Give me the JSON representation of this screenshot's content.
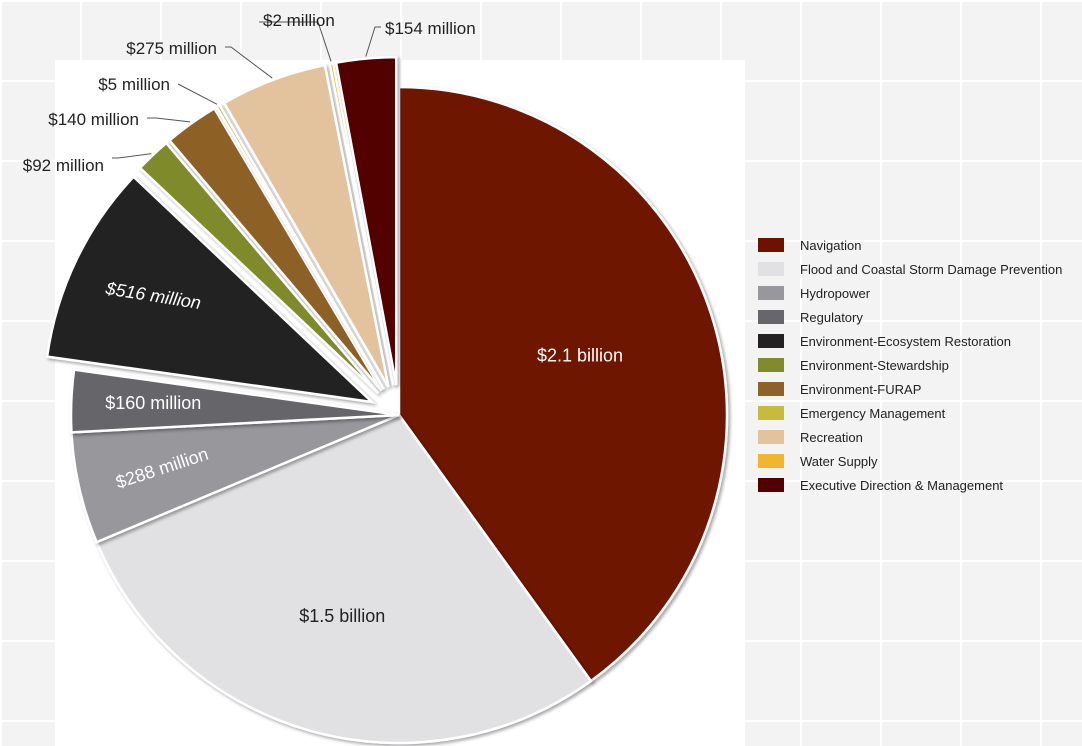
{
  "chart_data": {
    "type": "pie",
    "title": "",
    "slices": [
      {
        "name": "Navigation",
        "value": 2100,
        "label": "$2.1 billion",
        "color": "#6e1200"
      },
      {
        "name": "Flood and Coastal Storm Damage Prevention",
        "value": 1500,
        "label": "$1.5 billion",
        "color": "#e1e1e3"
      },
      {
        "name": "Hydropower",
        "value": 288,
        "label": "$288 million",
        "color": "#97979c"
      },
      {
        "name": "Regulatory",
        "value": 160,
        "label": "$160 million",
        "color": "#66666b"
      },
      {
        "name": "Environment-Ecosystem Restoration",
        "value": 516,
        "label": "$516 million",
        "color": "#232122"
      },
      {
        "name": "Environment-Stewardship",
        "value": 92,
        "label": "$92 million",
        "color": "#7f8b2c"
      },
      {
        "name": "Environment-FURAP",
        "value": 140,
        "label": "$140 million",
        "color": "#8d6128"
      },
      {
        "name": "Emergency Management",
        "value": 5,
        "label": "$5 million",
        "color": "#c7bb3d"
      },
      {
        "name": "Recreation",
        "value": 275,
        "label": "$275 million",
        "color": "#e2c39e"
      },
      {
        "name": "Water Supply",
        "value": 2,
        "label": "$2 million",
        "color": "#f1b62d"
      },
      {
        "name": "Executive Direction & Management",
        "value": 154,
        "label": "$154 million",
        "color": "#520004"
      }
    ],
    "legend_position": "right"
  }
}
